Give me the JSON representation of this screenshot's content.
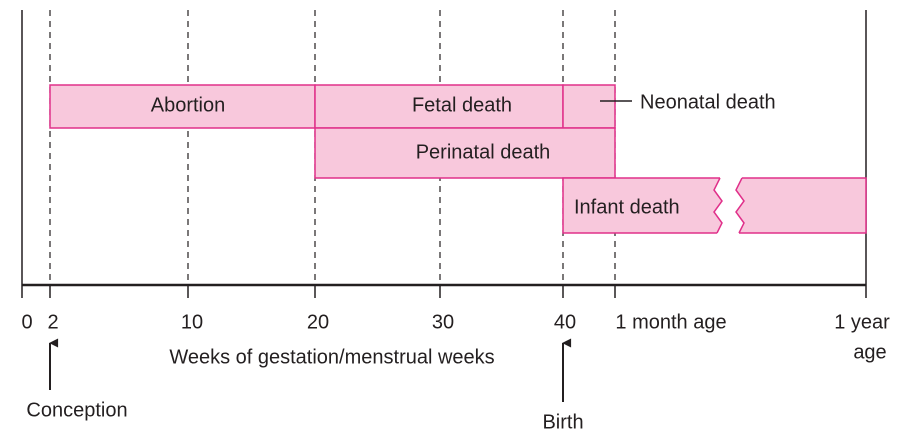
{
  "bars": {
    "abortion": "Abortion",
    "fetal_death": "Fetal death",
    "neonatal_death": "Neonatal death",
    "perinatal_death": "Perinatal death",
    "infant_death": "Infant death"
  },
  "axis": {
    "ticks": [
      "0",
      "2",
      "10",
      "20",
      "30",
      "40",
      "1 month age",
      [
        "1 year",
        "age"
      ]
    ],
    "title": "Weeks of gestation/menstrual weeks"
  },
  "annotations": {
    "conception": "Conception",
    "birth": "Birth"
  }
}
